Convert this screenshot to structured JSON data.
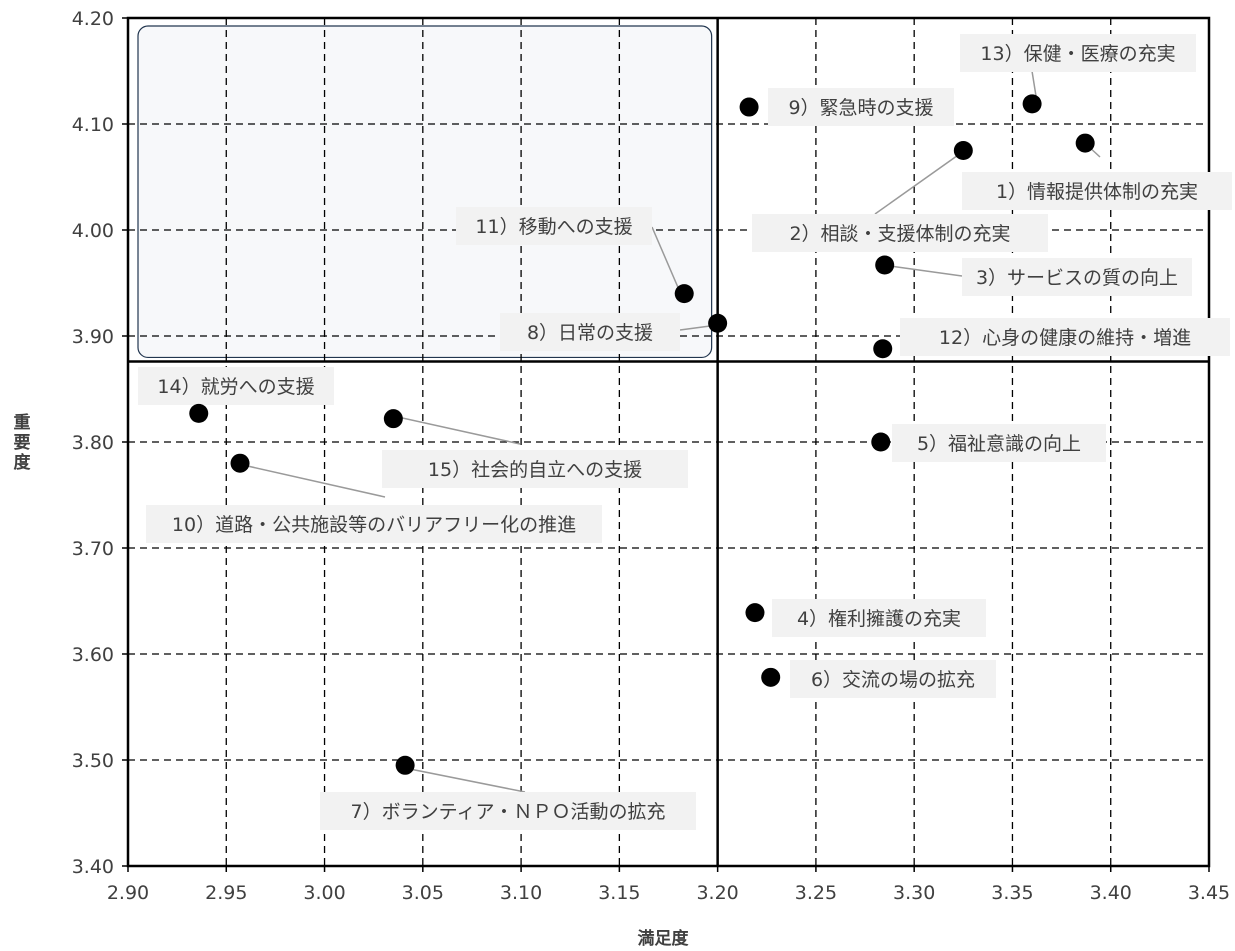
{
  "chart_data": {
    "type": "scatter",
    "title": "",
    "xlabel": "満足度",
    "ylabel": "重要度",
    "xlim": [
      2.9,
      3.45
    ],
    "ylim": [
      3.4,
      4.2
    ],
    "x_ticks": [
      "2.90",
      "2.95",
      "3.00",
      "3.05",
      "3.10",
      "3.15",
      "3.20",
      "3.25",
      "3.30",
      "3.35",
      "3.40",
      "3.45"
    ],
    "y_ticks": [
      "3.40",
      "3.50",
      "3.60",
      "3.70",
      "3.80",
      "3.90",
      "4.00",
      "4.10",
      "4.20"
    ],
    "grid": true,
    "quadrant_divider": {
      "x": 3.2,
      "y": 3.876
    },
    "highlight_region": {
      "x": [
        2.9,
        3.2
      ],
      "y": [
        3.876,
        4.2
      ]
    },
    "points": [
      {
        "label": "1）情報提供体制の充実",
        "x": 3.387,
        "y": 4.082
      },
      {
        "label": "2）相談・支援体制の充実",
        "x": 3.325,
        "y": 4.075
      },
      {
        "label": "3）サービスの質の向上",
        "x": 3.285,
        "y": 3.967
      },
      {
        "label": "4）権利擁護の充実",
        "x": 3.219,
        "y": 3.639
      },
      {
        "label": "5）福祉意識の向上",
        "x": 3.283,
        "y": 3.8
      },
      {
        "label": "6）交流の場の拡充",
        "x": 3.227,
        "y": 3.578
      },
      {
        "label": "7）ボランティア・ＮＰＯ活動の拡充",
        "x": 3.041,
        "y": 3.495
      },
      {
        "label": "8）日常の支援",
        "x": 3.2,
        "y": 3.912
      },
      {
        "label": "9）緊急時の支援",
        "x": 3.216,
        "y": 4.116
      },
      {
        "label": "10）道路・公共施設等のバリアフリー化の推進",
        "x": 2.957,
        "y": 3.78
      },
      {
        "label": "11）移動への支援",
        "x": 3.183,
        "y": 3.94
      },
      {
        "label": "12）心身の健康の維持・増進",
        "x": 3.284,
        "y": 3.888
      },
      {
        "label": "13）保健・医療の充実",
        "x": 3.36,
        "y": 4.119
      },
      {
        "label": "14）就労への支援",
        "x": 2.936,
        "y": 3.827
      },
      {
        "label": "15）社会的自立への支援",
        "x": 3.035,
        "y": 3.822
      }
    ]
  }
}
